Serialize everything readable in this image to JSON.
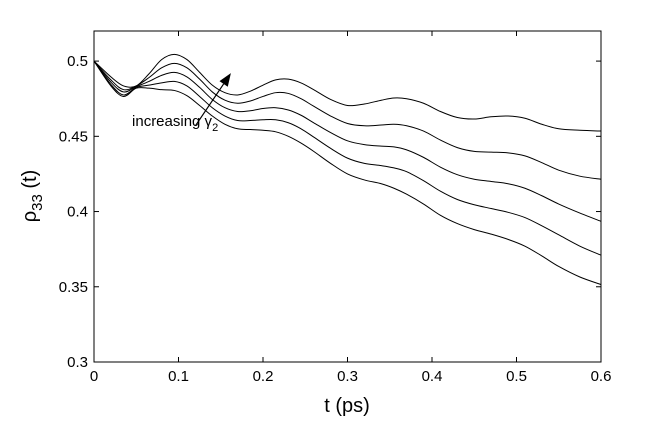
{
  "chart_data": {
    "type": "line",
    "title": "",
    "xlabel": "t (ps)",
    "ylabel": "ρ33 (t)",
    "ylabel_parts": {
      "symbol": "ρ",
      "subscript": "33",
      "suffix": " (t)"
    },
    "xlim": [
      0,
      0.6
    ],
    "ylim": [
      0.3,
      0.52
    ],
    "xticks": [
      0,
      0.1,
      0.2,
      0.3,
      0.4,
      0.5,
      0.6
    ],
    "xtick_labels": [
      "0",
      "0.1",
      "0.2",
      "0.3",
      "0.4",
      "0.5",
      "0.6"
    ],
    "yticks": [
      0.3,
      0.35,
      0.4,
      0.45,
      0.5
    ],
    "ytick_labels": [
      "0.3",
      "0.35",
      "0.4",
      "0.45",
      "0.5"
    ],
    "grid": false,
    "annotation": {
      "text": "increasing γ",
      "subscript": "2",
      "label_x": 0.045,
      "label_y": 0.457,
      "arrow_from": [
        0.12,
        0.457
      ],
      "arrow_to": [
        0.162,
        0.492
      ]
    },
    "series": [
      {
        "name": "curve-1",
        "x": [
          0,
          0.02,
          0.035,
          0.05,
          0.065,
          0.08,
          0.095,
          0.11,
          0.125,
          0.14,
          0.155,
          0.17,
          0.185,
          0.2,
          0.215,
          0.23,
          0.245,
          0.26,
          0.28,
          0.3,
          0.32,
          0.34,
          0.355,
          0.37,
          0.39,
          0.41,
          0.43,
          0.45,
          0.47,
          0.49,
          0.51,
          0.53,
          0.55,
          0.575,
          0.6
        ],
        "y": [
          0.5,
          0.4895,
          0.4835,
          0.4835,
          0.4915,
          0.501,
          0.5045,
          0.501,
          0.4925,
          0.484,
          0.479,
          0.4775,
          0.48,
          0.484,
          0.4875,
          0.488,
          0.4855,
          0.481,
          0.4745,
          0.4705,
          0.4715,
          0.474,
          0.4755,
          0.475,
          0.472,
          0.4665,
          0.4625,
          0.4615,
          0.463,
          0.4635,
          0.462,
          0.458,
          0.455,
          0.454,
          0.4535
        ]
      },
      {
        "name": "curve-2",
        "x": [
          0,
          0.02,
          0.035,
          0.05,
          0.065,
          0.08,
          0.095,
          0.11,
          0.125,
          0.14,
          0.155,
          0.17,
          0.185,
          0.2,
          0.215,
          0.23,
          0.245,
          0.26,
          0.28,
          0.3,
          0.32,
          0.34,
          0.355,
          0.37,
          0.39,
          0.41,
          0.43,
          0.45,
          0.47,
          0.49,
          0.51,
          0.53,
          0.55,
          0.575,
          0.6
        ],
        "y": [
          0.5,
          0.4875,
          0.481,
          0.4835,
          0.489,
          0.4955,
          0.4985,
          0.4955,
          0.488,
          0.4795,
          0.474,
          0.472,
          0.4735,
          0.4765,
          0.479,
          0.4785,
          0.475,
          0.47,
          0.4635,
          0.4585,
          0.457,
          0.4575,
          0.458,
          0.457,
          0.4535,
          0.4475,
          0.4425,
          0.44,
          0.4395,
          0.439,
          0.437,
          0.4325,
          0.4275,
          0.4235,
          0.4215
        ]
      },
      {
        "name": "curve-3",
        "x": [
          0,
          0.02,
          0.035,
          0.05,
          0.065,
          0.08,
          0.095,
          0.11,
          0.125,
          0.14,
          0.155,
          0.17,
          0.185,
          0.2,
          0.215,
          0.23,
          0.245,
          0.26,
          0.28,
          0.3,
          0.32,
          0.34,
          0.355,
          0.37,
          0.39,
          0.41,
          0.43,
          0.45,
          0.47,
          0.49,
          0.51,
          0.53,
          0.55,
          0.575,
          0.6
        ],
        "y": [
          0.5,
          0.486,
          0.4795,
          0.483,
          0.4865,
          0.4905,
          0.4925,
          0.4895,
          0.4825,
          0.4745,
          0.469,
          0.4665,
          0.467,
          0.4685,
          0.469,
          0.4675,
          0.464,
          0.459,
          0.4525,
          0.447,
          0.4445,
          0.4435,
          0.443,
          0.441,
          0.436,
          0.4295,
          0.4245,
          0.4215,
          0.42,
          0.4185,
          0.4155,
          0.4105,
          0.405,
          0.399,
          0.3935
        ]
      },
      {
        "name": "curve-4",
        "x": [
          0,
          0.02,
          0.035,
          0.05,
          0.065,
          0.08,
          0.095,
          0.11,
          0.125,
          0.14,
          0.155,
          0.17,
          0.185,
          0.2,
          0.215,
          0.23,
          0.245,
          0.26,
          0.28,
          0.3,
          0.32,
          0.34,
          0.355,
          0.37,
          0.39,
          0.41,
          0.43,
          0.45,
          0.47,
          0.49,
          0.51,
          0.53,
          0.55,
          0.575,
          0.6
        ],
        "y": [
          0.5,
          0.4845,
          0.4775,
          0.4825,
          0.484,
          0.4855,
          0.4865,
          0.4835,
          0.4765,
          0.469,
          0.4635,
          0.4605,
          0.4605,
          0.461,
          0.461,
          0.459,
          0.455,
          0.4495,
          0.442,
          0.4355,
          0.432,
          0.4305,
          0.429,
          0.4265,
          0.4205,
          0.4135,
          0.408,
          0.4045,
          0.402,
          0.3995,
          0.396,
          0.3905,
          0.3845,
          0.377,
          0.371
        ]
      },
      {
        "name": "curve-5",
        "x": [
          0,
          0.02,
          0.035,
          0.05,
          0.065,
          0.08,
          0.095,
          0.11,
          0.125,
          0.14,
          0.155,
          0.17,
          0.185,
          0.2,
          0.215,
          0.23,
          0.245,
          0.26,
          0.28,
          0.3,
          0.32,
          0.34,
          0.355,
          0.37,
          0.39,
          0.41,
          0.43,
          0.45,
          0.47,
          0.49,
          0.51,
          0.53,
          0.55,
          0.575,
          0.6
        ],
        "y": [
          0.5,
          0.4835,
          0.4765,
          0.482,
          0.482,
          0.481,
          0.4805,
          0.477,
          0.4705,
          0.4635,
          0.458,
          0.455,
          0.4545,
          0.454,
          0.453,
          0.45,
          0.4455,
          0.44,
          0.432,
          0.425,
          0.421,
          0.4185,
          0.4155,
          0.4115,
          0.405,
          0.3975,
          0.392,
          0.388,
          0.385,
          0.3815,
          0.377,
          0.3705,
          0.3635,
          0.3565,
          0.3515
        ]
      }
    ]
  }
}
